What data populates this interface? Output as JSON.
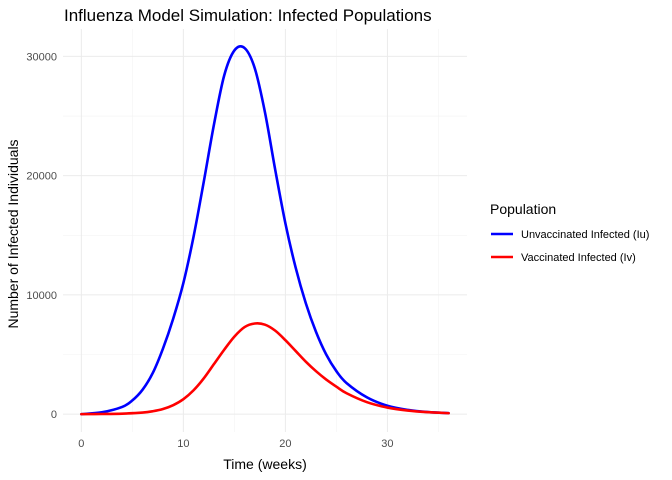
{
  "chart_data": {
    "type": "line",
    "title": "Influenza Model Simulation: Infected Populations",
    "xlabel": "Time (weeks)",
    "ylabel": "Number of Infected Individuals",
    "xlim": [
      -1.8,
      37.8
    ],
    "ylim": [
      -1500,
      32300
    ],
    "x_ticks": [
      0,
      10,
      20,
      30
    ],
    "y_ticks": [
      0,
      10000,
      20000,
      30000
    ],
    "x_tick_labels": [
      "0",
      "10",
      "20",
      "30"
    ],
    "y_tick_labels": [
      "0",
      "10000",
      "20000",
      "30000"
    ],
    "grid": true,
    "legend": {
      "title": "Population",
      "position": "right"
    },
    "series": [
      {
        "name": "Unvaccinated Infected (Iu)",
        "color": "#0000ff",
        "x": [
          0,
          2,
          4,
          5,
          6,
          7,
          8,
          9,
          10,
          11,
          12,
          13,
          14,
          15,
          16,
          17,
          18,
          19,
          20,
          21,
          22,
          23,
          24,
          25,
          26,
          28,
          30,
          32,
          34,
          36
        ],
        "y": [
          0,
          150,
          600,
          1150,
          2050,
          3450,
          5500,
          8000,
          11000,
          14900,
          19500,
          24300,
          28400,
          30500,
          30700,
          29000,
          25300,
          20500,
          16000,
          12300,
          9300,
          6900,
          5000,
          3600,
          2600,
          1400,
          700,
          350,
          170,
          80
        ]
      },
      {
        "name": "Vaccinated Infected (Iv)",
        "color": "#ff0000",
        "x": [
          0,
          2,
          4,
          6,
          7,
          8,
          9,
          10,
          11,
          12,
          13,
          14,
          15,
          16,
          17,
          18,
          19,
          20,
          21,
          22,
          23,
          24,
          25,
          26,
          28,
          30,
          32,
          34,
          36
        ],
        "y": [
          0,
          10,
          40,
          130,
          240,
          430,
          750,
          1250,
          2000,
          3000,
          4200,
          5400,
          6500,
          7300,
          7600,
          7500,
          7000,
          6200,
          5300,
          4400,
          3600,
          2900,
          2300,
          1750,
          1000,
          550,
          300,
          160,
          80
        ]
      }
    ]
  }
}
